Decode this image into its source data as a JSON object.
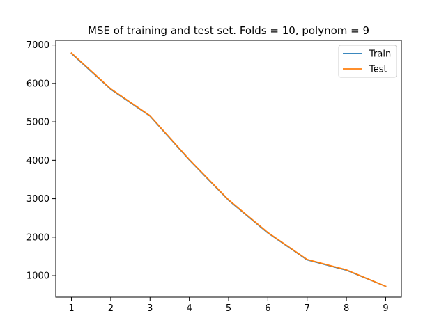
{
  "chart_data": {
    "type": "line",
    "title": "MSE of training and test set. Folds = 10, polynom = 9",
    "xlabel": "",
    "ylabel": "",
    "x": [
      1,
      2,
      3,
      4,
      5,
      6,
      7,
      8,
      9
    ],
    "xticks": [
      "1",
      "2",
      "3",
      "4",
      "5",
      "6",
      "7",
      "8",
      "9"
    ],
    "yticks": [
      "1000",
      "2000",
      "3000",
      "4000",
      "5000",
      "6000",
      "7000"
    ],
    "xlim": [
      0.6,
      9.4
    ],
    "ylim": [
      440,
      7120
    ],
    "grid": false,
    "legend_position": "top-right",
    "series": [
      {
        "name": "Train",
        "color": "#1f77b4",
        "values": [
          6780,
          5850,
          5150,
          4010,
          2960,
          2110,
          1410,
          1140,
          720
        ]
      },
      {
        "name": "Test",
        "color": "#ff7f0e",
        "values": [
          6790,
          5860,
          5160,
          4020,
          2970,
          2120,
          1420,
          1150,
          720
        ]
      }
    ]
  }
}
